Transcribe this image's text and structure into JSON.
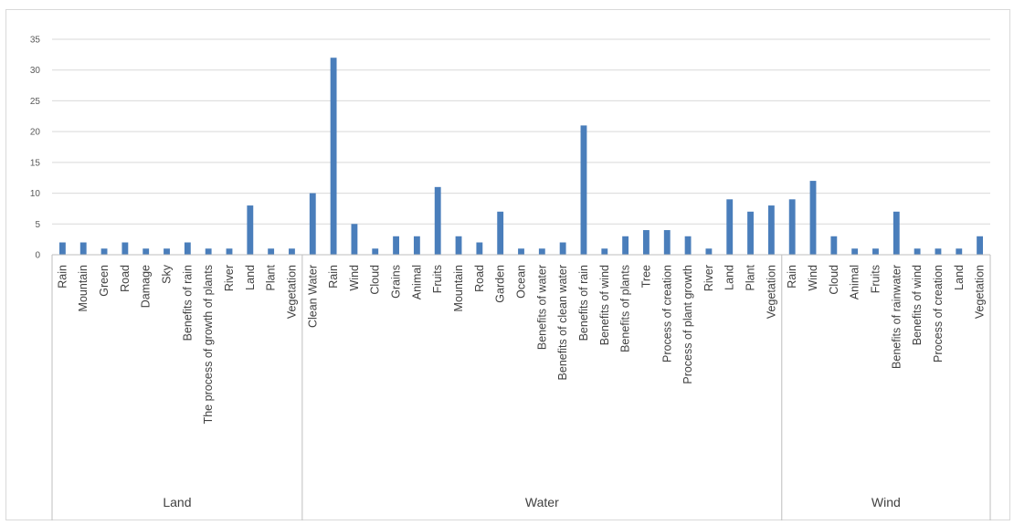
{
  "colors": {
    "bar": "#4a7ebb",
    "grid": "#d9d9d9",
    "axis": "#bfbfbf",
    "text": "#595959"
  },
  "chart_data": {
    "type": "bar",
    "title": "",
    "xlabel": "",
    "ylabel": "",
    "ylim": [
      0,
      35
    ],
    "yticks": [
      0,
      5,
      10,
      15,
      20,
      25,
      30,
      35
    ],
    "grid": true,
    "legend": "none",
    "groups": [
      {
        "name": "Land",
        "categories": [
          "Rain",
          "Mountain",
          "Green",
          "Road",
          "Damage",
          "Sky",
          "Benefits of rain",
          "The process of growth of plants",
          "River",
          "Land",
          "Plant",
          "Vegetation"
        ],
        "values": [
          2,
          2,
          1,
          2,
          1,
          1,
          2,
          1,
          1,
          8,
          1,
          1
        ]
      },
      {
        "name": "Water",
        "categories": [
          "Clean Water",
          "Rain",
          "Wind",
          "Cloud",
          "Grains",
          "Animal",
          "Fruits",
          "Mountain",
          "Road",
          "Garden",
          "Ocean",
          "Benefits of water",
          "Benefits of clean water",
          "Benefits of rain",
          "Benefits of wind",
          "Benefits of plants",
          "Tree",
          "Process of creation",
          "Process of plant growth",
          "River",
          "Land",
          "Plant",
          "Vegetation"
        ],
        "values": [
          10,
          32,
          5,
          1,
          3,
          3,
          11,
          3,
          2,
          7,
          1,
          1,
          2,
          21,
          1,
          3,
          4,
          4,
          3,
          1,
          9,
          7,
          8
        ]
      },
      {
        "name": "Wind",
        "categories": [
          "Rain",
          "Wind",
          "Cloud",
          "Animal",
          "Fruits",
          "Benefits of rainwater",
          "Benefits of wind",
          "Process of creation",
          "Land",
          "Vegetation"
        ],
        "values": [
          9,
          12,
          3,
          1,
          1,
          7,
          1,
          1,
          1,
          3
        ]
      }
    ]
  }
}
